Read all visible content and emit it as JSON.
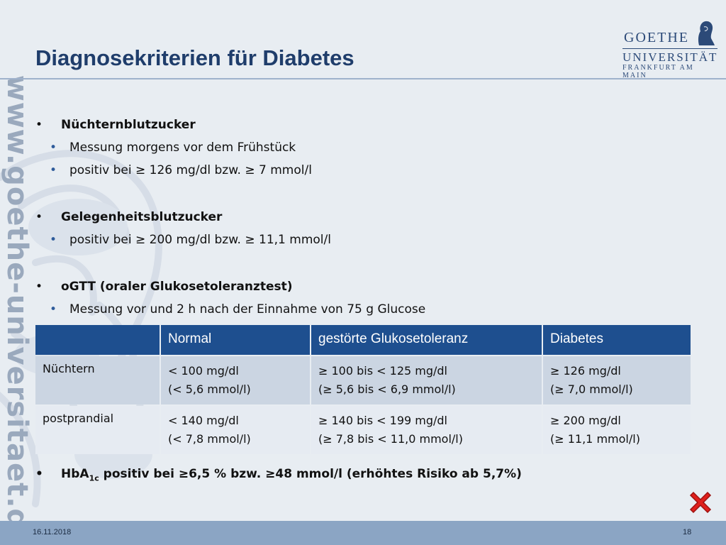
{
  "slide": {
    "title": "Diagnosekriterien für Diabetes",
    "watermark_url": "www.goethe-universitaet.de",
    "logo": {
      "line1": "GOETHE",
      "line2": "UNIVERSITÄT",
      "line3": "FRANKFURT AM MAIN"
    },
    "bullets": [
      {
        "level": 1,
        "text": "Nüchternblutzucker"
      },
      {
        "level": 2,
        "text": "Messung morgens vor dem Frühstück"
      },
      {
        "level": 2,
        "text": "positiv bei ≥ 126 mg/dl bzw. ≥ 7 mmol/l"
      },
      {
        "level": 1,
        "text": "Gelegenheitsblutzucker"
      },
      {
        "level": 2,
        "text": "positiv bei ≥ 200 mg/dl bzw. ≥ 11,1 mmol/l"
      },
      {
        "level": 1,
        "text": "oGTT (oraler Glukosetoleranztest)"
      },
      {
        "level": 2,
        "text": "Messung vor und 2 h nach der Einnahme von 75 g Glucose"
      }
    ],
    "bullet_glyph": "•",
    "table": {
      "headers": [
        "",
        "Normal",
        "gestörte Glukosetoleranz",
        "Diabetes"
      ],
      "rows": [
        {
          "label": "Nüchtern",
          "cells": [
            [
              "< 100 mg/dl",
              "(< 5,6 mmol/l)"
            ],
            [
              "≥ 100 bis < 125 mg/dl",
              "(≥ 5,6 bis < 6,9 mmol/l)"
            ],
            [
              "≥ 126 mg/dl",
              "(≥ 7,0 mmol/l)"
            ]
          ]
        },
        {
          "label": "postprandial",
          "cells": [
            [
              "< 140 mg/dl",
              "(< 7,8 mmol/l)"
            ],
            [
              "≥ 140 bis < 199 mg/dl",
              "(≥ 7,8 bis < 11,0 mmol/l)"
            ],
            [
              "≥ 200 mg/dl",
              "(≥ 11,1 mmol/l)"
            ]
          ]
        }
      ]
    },
    "hba1c": {
      "main": "HbA",
      "sub": "1c",
      "rest": " positiv bei ≥6,5 % bzw. ≥48 mmol/l (erhöhtes Risiko ab 5,7%)"
    },
    "footer": {
      "date": "16.11.2018",
      "page": "18"
    },
    "close_icon": "close-x-icon",
    "colors": {
      "title": "#1f3d6b",
      "header_fill": "#1e4f8f",
      "row1_fill": "#cbd5e2",
      "row2_fill": "#e6ebf2",
      "footer_fill": "#8ba5c4",
      "close_red": "#e0201c"
    }
  }
}
